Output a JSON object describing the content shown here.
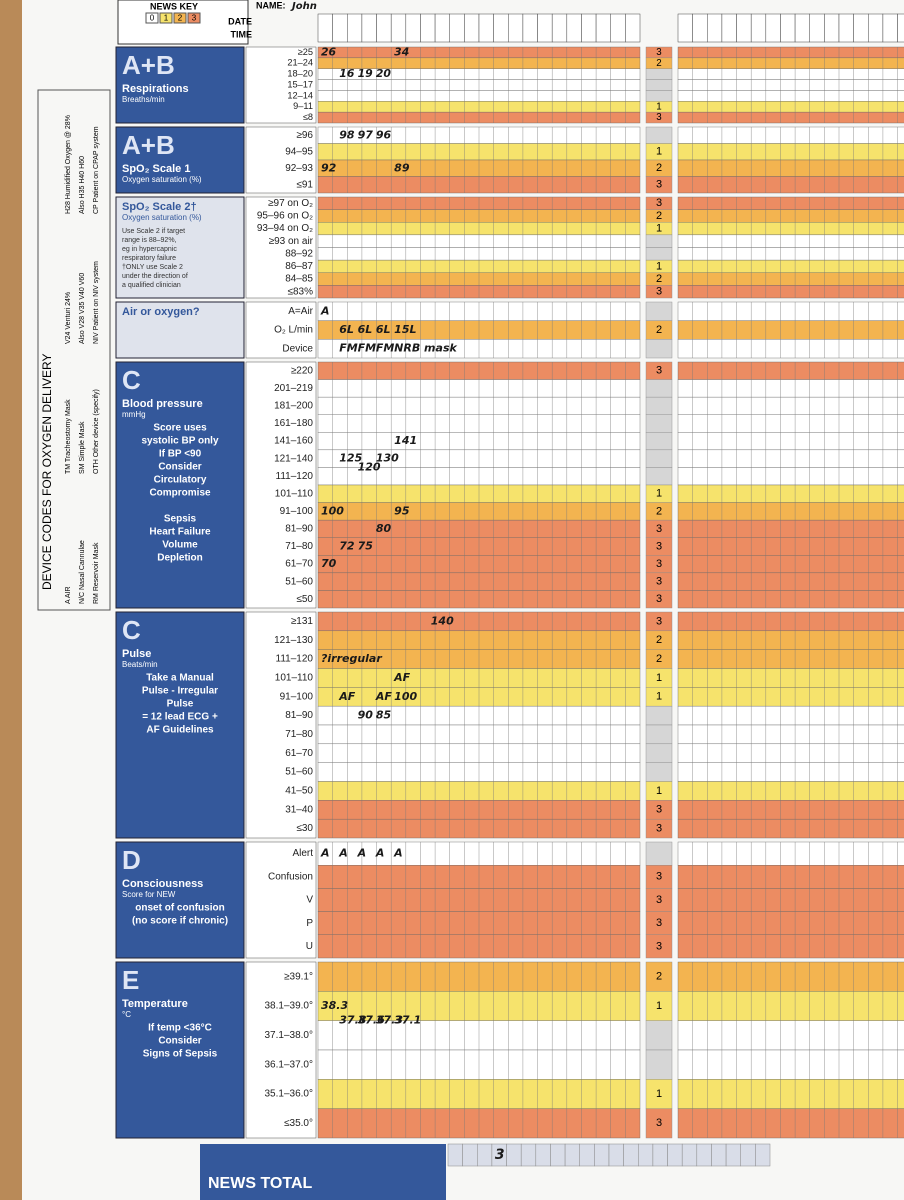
{
  "header": {
    "key_title": "NEWS KEY",
    "key": [
      0,
      1,
      2,
      3
    ],
    "name_label": "NAME:",
    "name": "John",
    "date_label": "DATE",
    "time_label": "TIME"
  },
  "device_codes": {
    "title": "DEVICE CODES FOR OXYGEN DELIVERY",
    "items": [
      "A  AIR",
      "N/C  Nasal Cannulae",
      "RM  Reservoir Mask",
      "TM  Tracheostomy Mask",
      "SM  Simple Mask",
      "OTH  Other device (specify)",
      "V24  Venturi 24%",
      "Also V28 V35 V40 V60",
      "NIV  Patient on NIV system",
      "H28  Humidified Oxygen @ 28%",
      "Also H35 H40 H60",
      "CP  Patient on CPAP system"
    ]
  },
  "sections": [
    {
      "letter": "A+B",
      "title": "Respirations",
      "subtitle": "Breaths/min",
      "notes": [],
      "rows": [
        {
          "label": "≥25",
          "score": 3
        },
        {
          "label": "21–24",
          "score": 2
        },
        {
          "label": "18–20",
          "score": 0
        },
        {
          "label": "15–17",
          "score": 0
        },
        {
          "label": "12–14",
          "score": 0
        },
        {
          "label": "9–11",
          "score": 1
        },
        {
          "label": "≤8",
          "score": 3
        }
      ],
      "entries": [
        "26",
        "34",
        "16",
        "19",
        "20"
      ]
    },
    {
      "letter": "A+B",
      "title": "SpO₂ Scale 1",
      "subtitle": "Oxygen saturation (%)",
      "notes": [],
      "rows": [
        {
          "label": "≥96",
          "score": 0
        },
        {
          "label": "94–95",
          "score": 1
        },
        {
          "label": "92–93",
          "score": 2
        },
        {
          "label": "≤91",
          "score": 3
        }
      ],
      "entries": [
        "98",
        "97",
        "96",
        "92",
        "89"
      ]
    },
    {
      "letter": "",
      "title": "SpO₂ Scale 2†",
      "subtitle": "Oxygen saturation (%)",
      "notes": [
        "Use Scale 2 if target",
        "range is 88–92%,",
        "eg in hypercapnic",
        "respiratory failure",
        "†ONLY use Scale 2",
        "under the direction of",
        "a qualified clinician"
      ],
      "rows": [
        {
          "label": "≥97 on O₂",
          "score": 3
        },
        {
          "label": "95–96 on O₂",
          "score": 2
        },
        {
          "label": "93–94 on O₂",
          "score": 1
        },
        {
          "label": "≥93 on air",
          "score": 0
        },
        {
          "label": "88–92",
          "score": 0
        },
        {
          "label": "86–87",
          "score": 1
        },
        {
          "label": "84–85",
          "score": 2
        },
        {
          "label": "≤83%",
          "score": 3
        }
      ],
      "entries": []
    },
    {
      "letter": "",
      "title": "Air or oxygen?",
      "subtitle": "",
      "notes": [],
      "rows": [
        {
          "label": "A=Air",
          "score": 0
        },
        {
          "label": "O₂ L/min",
          "score": 2
        },
        {
          "label": "Device",
          "score": 0
        }
      ],
      "entries": [
        "A",
        "6L",
        "6L",
        "6L",
        "15L",
        "FM",
        "FM",
        "FM",
        "NRB mask"
      ]
    },
    {
      "letter": "C",
      "title": "Blood pressure",
      "subtitle": "mmHg",
      "notes": [
        "Score uses",
        "systolic BP only",
        "If BP <90",
        "Consider",
        "Circulatory",
        "Compromise",
        "",
        "Sepsis",
        "Heart Failure",
        "Volume",
        "Depletion"
      ],
      "rows": [
        {
          "label": "≥220",
          "score": 3
        },
        {
          "label": "201–219",
          "score": 0
        },
        {
          "label": "181–200",
          "score": 0
        },
        {
          "label": "161–180",
          "score": 0
        },
        {
          "label": "141–160",
          "score": 0
        },
        {
          "label": "121–140",
          "score": 0
        },
        {
          "label": "111–120",
          "score": 0
        },
        {
          "label": "101–110",
          "score": 1
        },
        {
          "label": "91–100",
          "score": 2
        },
        {
          "label": "81–90",
          "score": 3
        },
        {
          "label": "71–80",
          "score": 3
        },
        {
          "label": "61–70",
          "score": 3
        },
        {
          "label": "51–60",
          "score": 3
        },
        {
          "label": "≤50",
          "score": 3
        }
      ],
      "entries": [
        "100",
        "125",
        "120",
        "130",
        "141",
        "70",
        "72",
        "75",
        "80",
        "95"
      ]
    },
    {
      "letter": "C",
      "title": "Pulse",
      "subtitle": "Beats/min",
      "notes": [
        "Take a Manual",
        "Pulse - Irregular",
        "Pulse",
        "= 12 lead ECG +",
        "AF Guidelines"
      ],
      "rows": [
        {
          "label": "≥131",
          "score": 3
        },
        {
          "label": "121–130",
          "score": 2
        },
        {
          "label": "111–120",
          "score": 2
        },
        {
          "label": "101–110",
          "score": 1
        },
        {
          "label": "91–100",
          "score": 1
        },
        {
          "label": "81–90",
          "score": 0
        },
        {
          "label": "71–80",
          "score": 0
        },
        {
          "label": "61–70",
          "score": 0
        },
        {
          "label": "51–60",
          "score": 0
        },
        {
          "label": "41–50",
          "score": 1
        },
        {
          "label": "31–40",
          "score": 3
        },
        {
          "label": "≤30",
          "score": 3
        }
      ],
      "entries": [
        "140",
        "?irregular",
        "AF",
        "90",
        "AF",
        "85",
        "AF",
        "100"
      ]
    },
    {
      "letter": "D",
      "title": "Consciousness",
      "subtitle": "Score for NEW",
      "notes": [
        "onset of confusion",
        "(no score if chronic)"
      ],
      "rows": [
        {
          "label": "Alert",
          "score": 0
        },
        {
          "label": "Confusion",
          "score": 3
        },
        {
          "label": "V",
          "score": 3
        },
        {
          "label": "P",
          "score": 3
        },
        {
          "label": "U",
          "score": 3
        }
      ],
      "entries": [
        "A",
        "A",
        "A",
        "A",
        "A"
      ]
    },
    {
      "letter": "E",
      "title": "Temperature",
      "subtitle": "°C",
      "notes": [
        "If temp <36°C",
        "Consider",
        "Signs of Sepsis"
      ],
      "rows": [
        {
          "label": "≥39.1°",
          "score": 2
        },
        {
          "label": "38.1–39.0°",
          "score": 1
        },
        {
          "label": "37.1–38.0°",
          "score": 0
        },
        {
          "label": "36.1–37.0°",
          "score": 0
        },
        {
          "label": "35.1–36.0°",
          "score": 1
        },
        {
          "label": "≤35.0°",
          "score": 3
        }
      ],
      "entries": [
        "38.3",
        "37.8",
        "37.6",
        "37.3",
        "37.1"
      ]
    }
  ],
  "total": {
    "label": "NEWS TOTAL",
    "entries": [
      "3"
    ]
  }
}
